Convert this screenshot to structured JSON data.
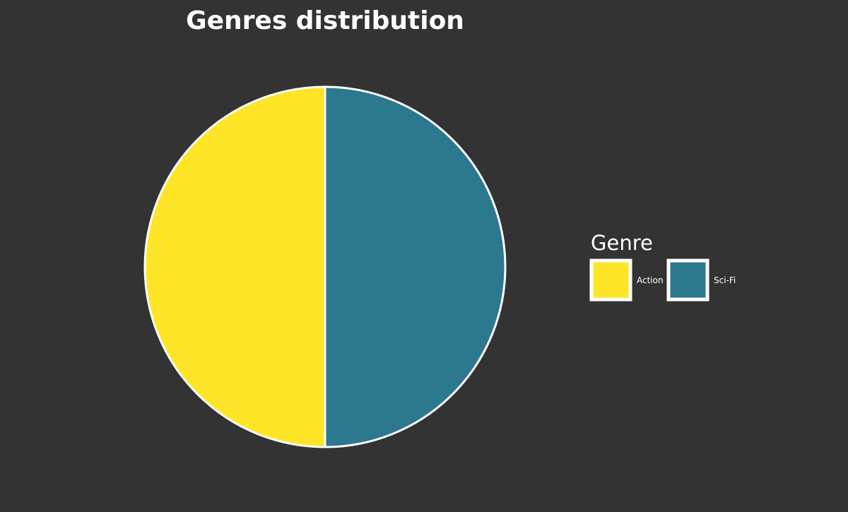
{
  "chart_data": {
    "type": "pie",
    "title": "Genres distribution",
    "categories": [
      "Action",
      "Sci-Fi"
    ],
    "values": [
      50,
      50
    ],
    "legend": {
      "title": "Genre",
      "placement": "right"
    }
  },
  "colors": {
    "background": "#333333",
    "text": "#ffffff",
    "slice_stroke": "#ffffff",
    "series": [
      "#fee527",
      "#2c788e"
    ]
  }
}
